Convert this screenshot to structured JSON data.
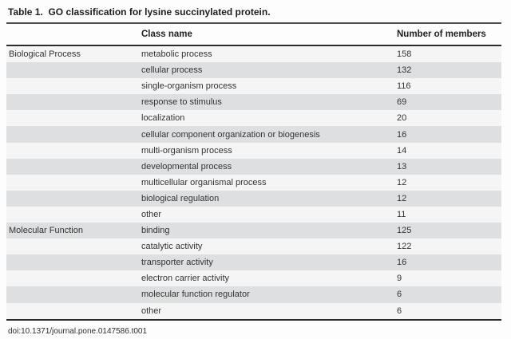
{
  "table": {
    "title": "Table 1.  GO classification for lysine succinylated protein.",
    "columns": {
      "group": "",
      "class_name": "Class name",
      "members": "Number of members"
    },
    "rows": [
      {
        "group": "Biological Process",
        "class_name": "metabolic process",
        "members": "158"
      },
      {
        "group": "",
        "class_name": "cellular process",
        "members": "132"
      },
      {
        "group": "",
        "class_name": "single-organism process",
        "members": "116"
      },
      {
        "group": "",
        "class_name": "response to stimulus",
        "members": "69"
      },
      {
        "group": "",
        "class_name": "localization",
        "members": "20"
      },
      {
        "group": "",
        "class_name": "cellular component organization or biogenesis",
        "members": "16"
      },
      {
        "group": "",
        "class_name": "multi-organism process",
        "members": "14"
      },
      {
        "group": "",
        "class_name": "developmental process",
        "members": "13"
      },
      {
        "group": "",
        "class_name": "multicellular organismal process",
        "members": "12"
      },
      {
        "group": "",
        "class_name": "biological regulation",
        "members": "12"
      },
      {
        "group": "",
        "class_name": "other",
        "members": "11"
      },
      {
        "group": "Molecular Function",
        "class_name": "binding",
        "members": "125"
      },
      {
        "group": "",
        "class_name": "catalytic activity",
        "members": "122"
      },
      {
        "group": "",
        "class_name": "transporter activity",
        "members": "16"
      },
      {
        "group": "",
        "class_name": "electron carrier activity",
        "members": "9"
      },
      {
        "group": "",
        "class_name": "molecular function regulator",
        "members": "6"
      },
      {
        "group": "",
        "class_name": "other",
        "members": "6"
      }
    ],
    "footnote": "doi:10.1371/journal.pone.0147586.t001"
  },
  "colors": {
    "stripe": "#dedfe0",
    "row_background": "#f5f5f6",
    "rule": "#2b2b2b",
    "text": "#333333"
  }
}
